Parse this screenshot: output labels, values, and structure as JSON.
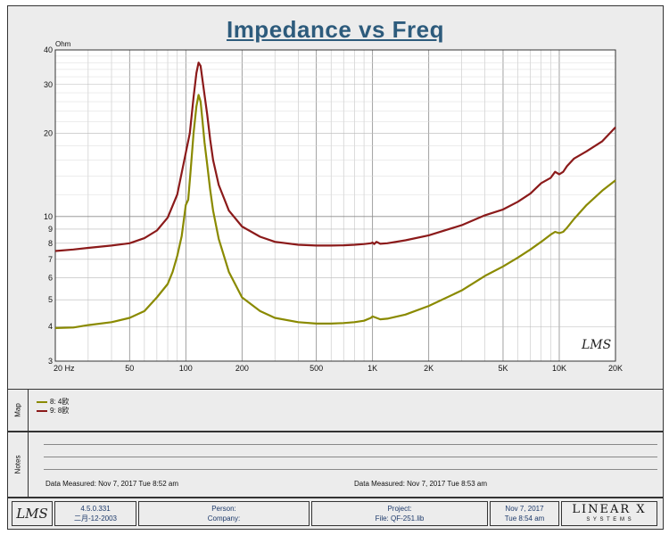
{
  "chart_data": {
    "type": "line",
    "title": "Impedance vs Freq",
    "ylabel": "Ohm",
    "xscale": "log",
    "yscale": "log",
    "xlim": [
      20,
      20000
    ],
    "ylim": [
      3,
      40
    ],
    "grid": true,
    "x_tick_labels": [
      "20 Hz",
      "50",
      "100",
      "200",
      "500",
      "1K",
      "2K",
      "5K",
      "10K",
      "20K"
    ],
    "x_ticks": [
      20,
      50,
      100,
      200,
      500,
      1000,
      2000,
      5000,
      10000,
      20000
    ],
    "y_tick_labels": [
      "3",
      "4",
      "5",
      "6",
      "7",
      "8",
      "9",
      "10",
      "20",
      "30",
      "40"
    ],
    "y_ticks": [
      3,
      4,
      5,
      6,
      7,
      8,
      9,
      10,
      20,
      30,
      40
    ],
    "series": [
      {
        "name": "8: 4欧",
        "color": "#8a8a00",
        "x": [
          20,
          25,
          30,
          40,
          50,
          60,
          70,
          80,
          85,
          90,
          95,
          100,
          103,
          106,
          110,
          114,
          117,
          120,
          123,
          126,
          130,
          135,
          140,
          150,
          170,
          200,
          250,
          300,
          400,
          500,
          600,
          700,
          800,
          900,
          980,
          1000,
          1050,
          1100,
          1200,
          1500,
          2000,
          3000,
          4000,
          5000,
          6000,
          7000,
          8000,
          9000,
          9500,
          10000,
          10500,
          11000,
          12000,
          14000,
          17000,
          20000
        ],
        "y": [
          3.95,
          3.97,
          4.05,
          4.15,
          4.3,
          4.55,
          5.1,
          5.7,
          6.3,
          7.2,
          8.5,
          11,
          11.5,
          14.5,
          20,
          25,
          27.5,
          26,
          22,
          18.5,
          15.5,
          12.5,
          10.5,
          8.3,
          6.3,
          5.1,
          4.55,
          4.3,
          4.15,
          4.1,
          4.1,
          4.12,
          4.15,
          4.2,
          4.3,
          4.35,
          4.3,
          4.25,
          4.27,
          4.42,
          4.75,
          5.4,
          6.1,
          6.6,
          7.1,
          7.6,
          8.1,
          8.6,
          8.8,
          8.7,
          8.8,
          9.1,
          9.8,
          11,
          12.4,
          13.5
        ]
      },
      {
        "name": "9: 8欧",
        "color": "#8b1a1a",
        "x": [
          20,
          25,
          30,
          40,
          50,
          60,
          70,
          80,
          90,
          100,
          105,
          110,
          114,
          117,
          120,
          123,
          126,
          130,
          135,
          140,
          150,
          170,
          200,
          250,
          300,
          400,
          500,
          600,
          700,
          800,
          900,
          980,
          1000,
          1020,
          1050,
          1100,
          1200,
          1500,
          2000,
          3000,
          4000,
          5000,
          6000,
          7000,
          8000,
          9000,
          9500,
          10000,
          10500,
          11000,
          12000,
          14000,
          17000,
          20000
        ],
        "y": [
          7.5,
          7.6,
          7.7,
          7.85,
          8.0,
          8.35,
          8.9,
          9.9,
          12,
          17,
          20,
          27,
          33,
          36,
          35,
          31,
          27.5,
          23.5,
          19,
          16,
          13,
          10.5,
          9.2,
          8.45,
          8.1,
          7.9,
          7.85,
          7.85,
          7.87,
          7.9,
          7.95,
          8.0,
          8.05,
          7.95,
          8.1,
          7.97,
          8.0,
          8.2,
          8.55,
          9.3,
          10.1,
          10.6,
          11.3,
          12.1,
          13.2,
          13.8,
          14.5,
          14.2,
          14.5,
          15.2,
          16.2,
          17.2,
          18.7,
          21
        ]
      }
    ]
  },
  "map": {
    "label": "Map",
    "legend": [
      {
        "text": "8: 4欧",
        "color": "#8a8a00"
      },
      {
        "text": "9: 8欧",
        "color": "#8b1a1a"
      }
    ]
  },
  "notes": {
    "label": "Notes",
    "left_measured": "Data Measured: Nov  7, 2017  Tue  8:52 am",
    "right_measured": "Data Measured: Nov  7, 2017  Tue  8:53 am"
  },
  "watermark": "LMS",
  "footer": {
    "logo": "LMS",
    "version": "4.5.0.331",
    "version_date": "二月-12-2003",
    "person_label": "Person:",
    "company_label": "Company:",
    "project_label": "Project:",
    "file_label": "File: QF-251.lib",
    "date": "Nov  7, 2017",
    "time": "Tue  8:54 am",
    "brand_top": "LINEAR X",
    "brand_bottom": "S Y S T E M S"
  }
}
